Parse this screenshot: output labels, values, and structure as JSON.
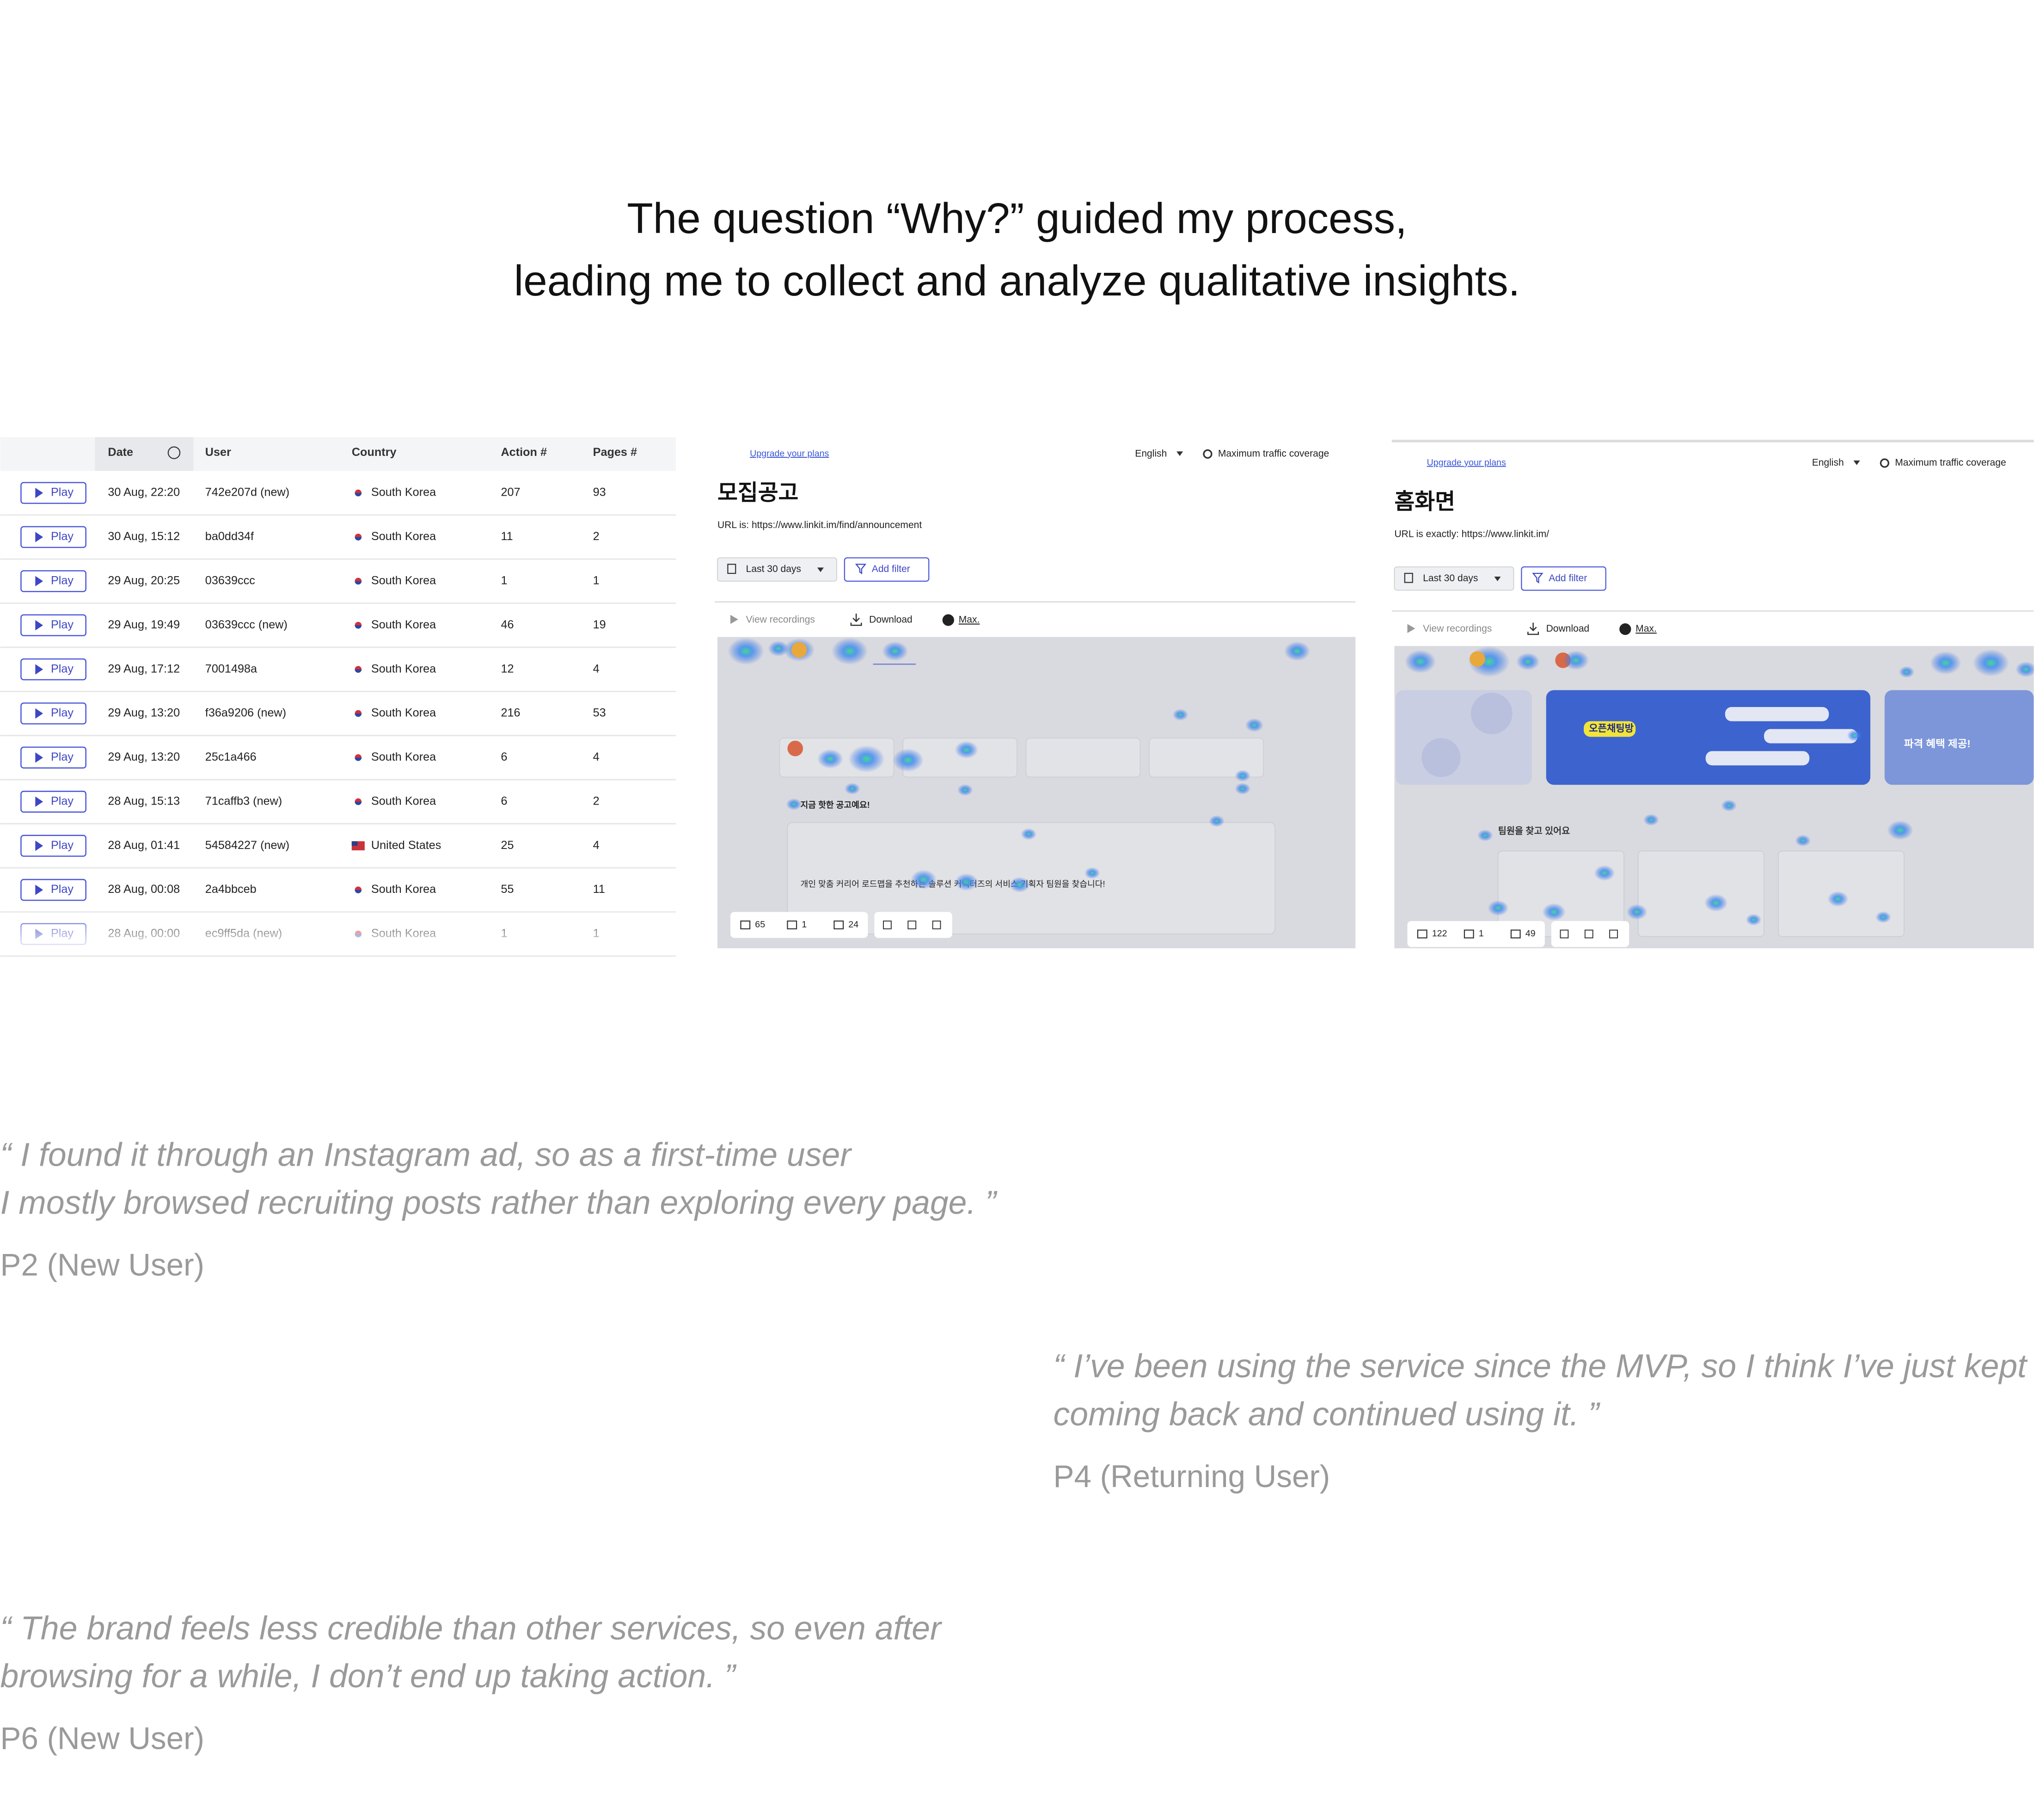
{
  "header": {
    "title_lines": [
      "The question “Why?” guided my process,",
      "leading me to collect and analyze qualitative insights."
    ]
  },
  "table": {
    "headers": [
      "Date",
      "User",
      "Country",
      "Action #",
      "Pages #"
    ],
    "play_label": "Play",
    "rows": [
      [
        "30 Aug, 22:20",
        "742e207d (new)",
        "South Korea",
        207,
        93
      ],
      [
        "30 Aug, 15:12",
        "ba0dd34f",
        "South Korea",
        11,
        2
      ],
      [
        "29 Aug, 20:25",
        "03639ccc",
        "South Korea",
        1,
        1
      ],
      [
        "29 Aug, 19:49",
        "03639ccc (new)",
        "South Korea",
        46,
        19
      ],
      [
        "29 Aug, 17:12",
        "7001498a",
        "South Korea",
        12,
        4
      ],
      [
        "29 Aug, 13:20",
        "f36a9206 (new)",
        "South Korea",
        216,
        53
      ],
      [
        "29 Aug, 13:20",
        "25c1a466",
        "South Korea",
        6,
        4
      ],
      [
        "28 Aug, 15:13",
        "71caffb3 (new)",
        "South Korea",
        6,
        2
      ],
      [
        "28 Aug, 01:41",
        "54584227 (new)",
        "United States",
        25,
        4
      ],
      [
        "28 Aug, 00:08",
        "2a4bbceb",
        "South Korea",
        55,
        11
      ],
      [
        "28 Aug, 00:00",
        "ec9ff5da (new)",
        "South Korea",
        1,
        1
      ]
    ]
  },
  "panels": [
    {
      "upgrade": "Upgrade your plans",
      "language": "English",
      "coverage": "Maximum traffic coverage",
      "page_title": "모집공고",
      "url": "URL is: https://www.linkit.im/find/announcement",
      "date_range": "Last 30 days",
      "add_filter": "Add filter",
      "view_recordings": "View recordings",
      "download": "Download",
      "max": "Max.",
      "stats": [
        "65",
        "1",
        "24"
      ],
      "heatmap_texts": [
        "지금 핫한 공고예요!",
        "개인 맞춤 커리어 로드맵을 추천하는 솔루션 커넥터즈의 서비스 기획자 팀원을 찾습니다!"
      ]
    },
    {
      "upgrade": "Upgrade your plans",
      "language": "English",
      "coverage": "Maximum traffic coverage",
      "page_title": "홈화면",
      "url": "URL is exactly: https://www.linkit.im/",
      "date_range": "Last 30 days",
      "add_filter": "Add filter",
      "view_recordings": "View recordings",
      "download": "Download",
      "max": "Max.",
      "stats": [
        "122",
        "1",
        "49"
      ],
      "heatmap_texts": [
        "팀원을 찾고 있어요",
        "오픈채팅방",
        "파격 혜택 제공!"
      ]
    }
  ],
  "quotes": [
    {
      "lines": [
        "“ I found it through an Instagram ad, so as a first-time user",
        "I mostly browsed recruiting posts rather than exploring every page. ”"
      ],
      "author": "P2 (New User)"
    },
    {
      "lines": [
        "“ I’ve been using the service since the MVP, so I think I’ve just kept",
        "coming back and continued using it. ”"
      ],
      "author": "P4 (Returning User)"
    },
    {
      "lines": [
        "“ The brand feels less credible than other services, so even after",
        "browsing for a while, I don’t end up taking action. ”"
      ],
      "author": "P6 (New User)"
    }
  ]
}
